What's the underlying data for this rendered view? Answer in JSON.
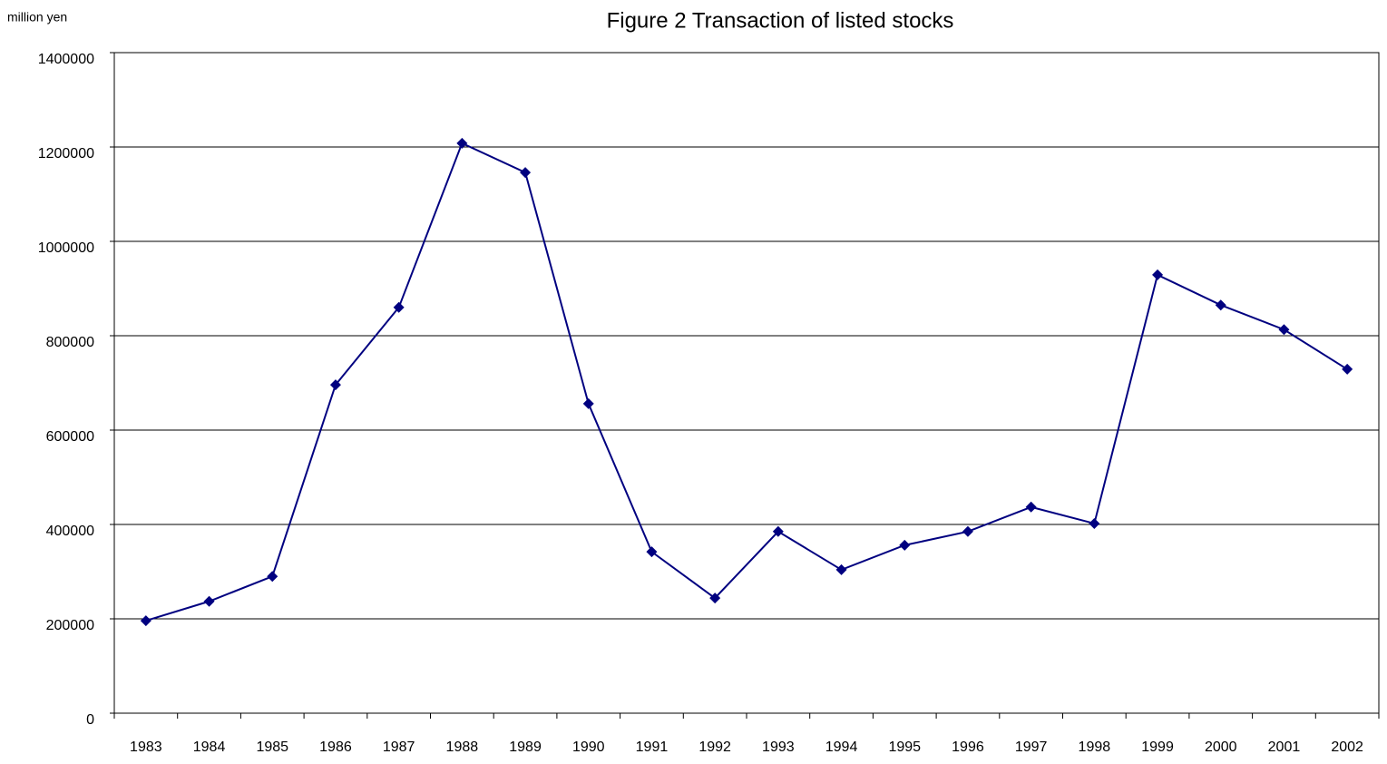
{
  "chart_data": {
    "type": "line",
    "title": "Figure 2 Transaction of listed stocks",
    "y_label": "million yen",
    "categories": [
      "1983",
      "1984",
      "1985",
      "1986",
      "1987",
      "1988",
      "1989",
      "1990",
      "1991",
      "1992",
      "1993",
      "1994",
      "1995",
      "1996",
      "1997",
      "1998",
      "1999",
      "2000",
      "2001",
      "2002"
    ],
    "values": [
      196000,
      237000,
      290000,
      696000,
      860000,
      1208000,
      1146000,
      656000,
      342000,
      244000,
      385000,
      304000,
      356000,
      385000,
      437000,
      402000,
      929000,
      865000,
      813000,
      729000
    ],
    "color": "#000080",
    "ylim": [
      0,
      1400000
    ],
    "yticks": [
      0,
      200000,
      400000,
      600000,
      800000,
      1000000,
      1200000,
      1400000
    ],
    "grid": true
  }
}
